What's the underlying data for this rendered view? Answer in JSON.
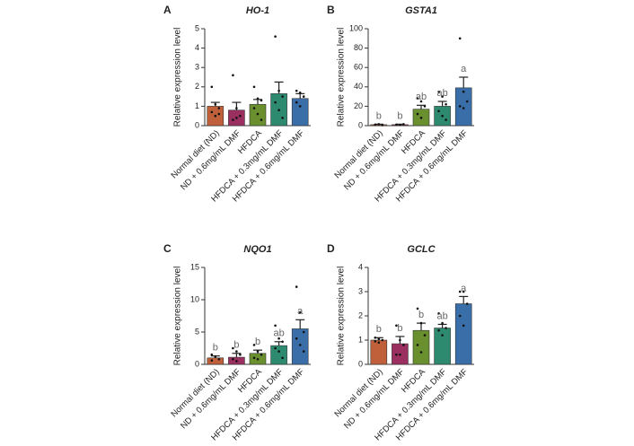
{
  "chart_data": [
    {
      "type": "bar",
      "panel_label": "A",
      "title": "HO-1",
      "ylabel": "Relative expression level",
      "categories": [
        "Normal diet (ND)",
        "ND + 0.6mg/mL DMF",
        "HFDCA",
        "HFDCA + 0.3mg/mL DMF",
        "HFDCA + 0.6mg/mL DMF"
      ],
      "values": [
        1.0,
        0.8,
        1.1,
        1.65,
        1.4
      ],
      "errors": [
        0.2,
        0.4,
        0.25,
        0.6,
        0.25
      ],
      "points": [
        [
          2.0,
          1.1,
          0.9,
          0.7,
          0.5,
          0.6
        ],
        [
          2.6,
          0.9,
          0.5,
          0.3,
          0.4
        ],
        [
          2.0,
          1.4,
          1.3,
          0.9,
          0.6,
          0.3
        ],
        [
          4.6,
          1.8,
          1.5,
          1.2,
          0.8,
          0.4
        ],
        [
          1.8,
          1.7,
          1.5,
          1.2,
          1.0
        ]
      ],
      "colors": [
        "#c0603a",
        "#9b3060",
        "#6a8f2f",
        "#2e8a6e",
        "#3a6ea8"
      ],
      "ylim": [
        0,
        5
      ],
      "yticks": [
        0,
        1,
        2,
        3,
        4,
        5
      ]
    },
    {
      "type": "bar",
      "panel_label": "B",
      "title": "GSTA1",
      "ylabel": "Relative expression level",
      "categories": [
        "Normal diet (ND)",
        "ND + 0.6mg/mL DMF",
        "HFDCA",
        "HFDCA + 0.3mg/mL DMF",
        "HFDCA + 0.6mg/mL DMF"
      ],
      "values": [
        1,
        1,
        17,
        20,
        39
      ],
      "errors": [
        0.5,
        0.5,
        4,
        5,
        11
      ],
      "points": [
        [
          1,
          1.5,
          0.5
        ],
        [
          1,
          0.8,
          1.5
        ],
        [
          28,
          25,
          20,
          12,
          8
        ],
        [
          35,
          30,
          22,
          15,
          10,
          6
        ],
        [
          90,
          35,
          25,
          20,
          18
        ]
      ],
      "letters": [
        "b",
        "b",
        "ab",
        "ab",
        "a"
      ],
      "colors": [
        "#c0603a",
        "#9b3060",
        "#6a8f2f",
        "#2e8a6e",
        "#3a6ea8"
      ],
      "ylim": [
        0,
        100
      ],
      "yticks": [
        0,
        20,
        40,
        60,
        80,
        100
      ]
    },
    {
      "type": "bar",
      "panel_label": "C",
      "title": "NQO1",
      "ylabel": "Relative expression level",
      "categories": [
        "Normal diet (ND)",
        "ND + 0.6mg/mL DMF",
        "HFDCA",
        "HFDCA + 0.3mg/mL DMF",
        "HFDCA + 0.6mg/mL DMF"
      ],
      "values": [
        1.0,
        1.1,
        1.7,
        2.9,
        5.5
      ],
      "errors": [
        0.3,
        0.6,
        0.5,
        0.6,
        1.4
      ],
      "points": [
        [
          1.5,
          1.2,
          0.8,
          0.6
        ],
        [
          2.5,
          2,
          1.5,
          0.8,
          0.5
        ],
        [
          3,
          2,
          1.5,
          1,
          0.8
        ],
        [
          6,
          4,
          3.5,
          2.5,
          2,
          1
        ],
        [
          12,
          8,
          5,
          4,
          3,
          2
        ]
      ],
      "letters": [
        "b",
        "b",
        "b",
        "ab",
        "a"
      ],
      "colors": [
        "#c0603a",
        "#9b3060",
        "#6a8f2f",
        "#2e8a6e",
        "#3a6ea8"
      ],
      "ylim": [
        0,
        15
      ],
      "yticks": [
        0,
        5,
        10,
        15
      ]
    },
    {
      "type": "bar",
      "panel_label": "D",
      "title": "GCLC",
      "ylabel": "Relative expression level",
      "categories": [
        "Normal diet (ND)",
        "ND + 0.6mg/mL DMF",
        "HFDCA",
        "HFDCA + 0.3mg/mL DMF",
        "HFDCA + 0.6mg/mL DMF"
      ],
      "values": [
        1.0,
        0.85,
        1.4,
        1.5,
        2.5
      ],
      "errors": [
        0.1,
        0.3,
        0.3,
        0.15,
        0.3
      ],
      "points": [
        [
          1.1,
          1.05,
          1,
          0.95,
          0.9
        ],
        [
          1.6,
          1.0,
          0.8,
          0.4,
          0.4
        ],
        [
          2.3,
          1.7,
          1.2,
          0.8,
          0.5
        ],
        [
          2.1,
          1.7,
          1.5,
          1.4,
          1.2
        ],
        [
          3.0,
          3.0,
          2.5,
          2.0,
          1.6
        ]
      ],
      "letters": [
        "b",
        "b",
        "b",
        "ab",
        "a"
      ],
      "colors": [
        "#c0603a",
        "#9b3060",
        "#6a8f2f",
        "#2e8a6e",
        "#3a6ea8"
      ],
      "ylim": [
        0,
        4
      ],
      "yticks": [
        0,
        1,
        2,
        3,
        4
      ]
    }
  ]
}
